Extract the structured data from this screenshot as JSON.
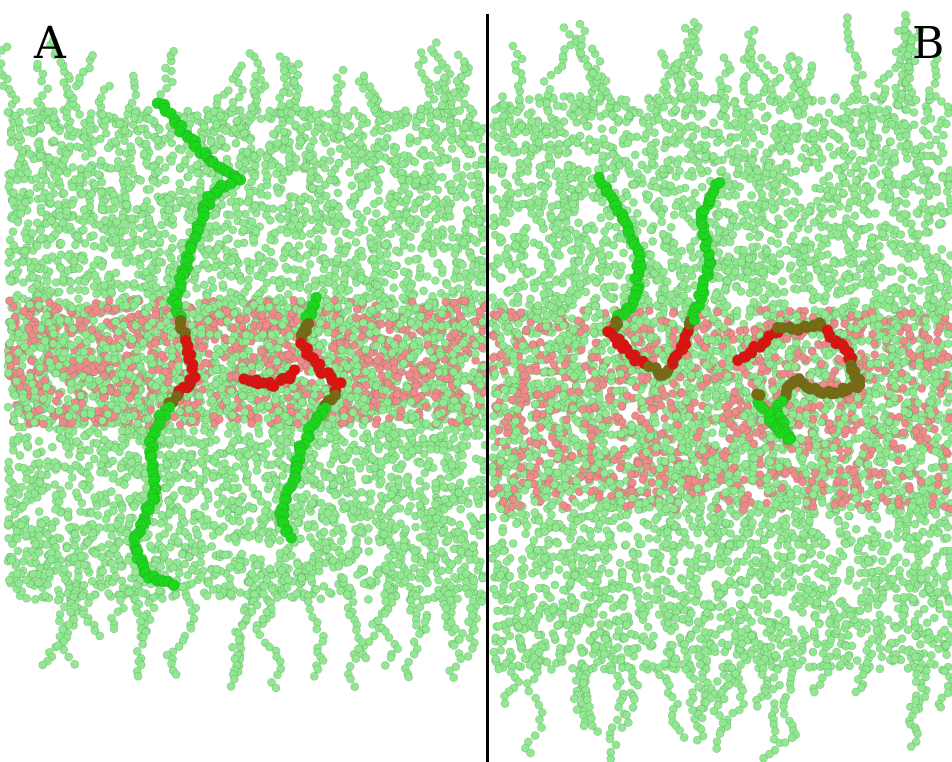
{
  "panels": [
    {
      "label": "A"
    },
    {
      "label": "B"
    }
  ],
  "colors": {
    "background": "#ffffff",
    "membrane_bead": "#90e890",
    "core_bead": "#f08a8a",
    "chain_green": "#1cd81c",
    "chain_olive": "#7a6a14",
    "chain_red": "#e01010",
    "divider": "#000000"
  },
  "icons": [
    "bead-layer",
    "polymer-chain"
  ]
}
